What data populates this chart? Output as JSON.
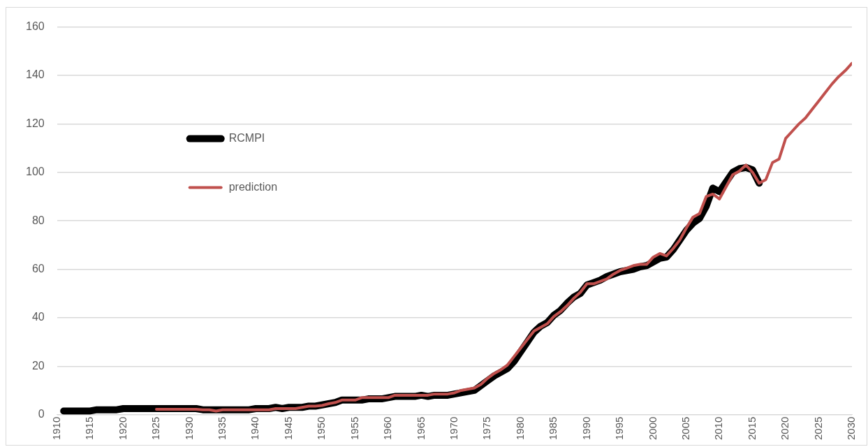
{
  "chart_data": {
    "type": "line",
    "xlim": [
      1910,
      2030
    ],
    "xticks": [
      1910,
      1915,
      1920,
      1925,
      1930,
      1935,
      1940,
      1945,
      1950,
      1955,
      1960,
      1965,
      1970,
      1975,
      1980,
      1985,
      1990,
      1995,
      2000,
      2005,
      2010,
      2015,
      2020,
      2025,
      2030
    ],
    "ylim": [
      0,
      160
    ],
    "yticks": [
      0,
      20,
      40,
      60,
      80,
      100,
      120,
      140,
      160
    ],
    "grid": "y",
    "legend": "top left",
    "marker": "none",
    "line_style": "solid",
    "series": [
      {
        "name": "RCMPI",
        "color": "#000000",
        "x": [
          1911,
          1912,
          1913,
          1914,
          1915,
          1916,
          1917,
          1918,
          1919,
          1920,
          1921,
          1922,
          1923,
          1924,
          1925,
          1926,
          1927,
          1928,
          1929,
          1930,
          1931,
          1932,
          1933,
          1934,
          1935,
          1936,
          1937,
          1938,
          1939,
          1940,
          1941,
          1942,
          1943,
          1944,
          1945,
          1946,
          1947,
          1948,
          1949,
          1950,
          1951,
          1952,
          1953,
          1954,
          1955,
          1956,
          1957,
          1958,
          1959,
          1960,
          1961,
          1962,
          1963,
          1964,
          1965,
          1966,
          1967,
          1968,
          1969,
          1970,
          1971,
          1972,
          1973,
          1974,
          1975,
          1976,
          1977,
          1978,
          1979,
          1980,
          1981,
          1982,
          1983,
          1984,
          1985,
          1986,
          1987,
          1988,
          1989,
          1990,
          1991,
          1992,
          1993,
          1994,
          1995,
          1996,
          1997,
          1998,
          1999,
          2000,
          2001,
          2002,
          2003,
          2004,
          2005,
          2006,
          2007,
          2008,
          2009,
          2010,
          2011,
          2012,
          2013,
          2014,
          2015,
          2016
        ],
        "values": [
          1.5,
          1.5,
          1.5,
          1.5,
          1.5,
          2,
          2,
          2,
          2,
          2.5,
          2.5,
          2.5,
          2.5,
          2.5,
          2.5,
          2.5,
          2.5,
          2.5,
          2.5,
          2.5,
          2.5,
          2,
          2,
          2,
          2,
          2,
          2,
          2,
          2,
          2.5,
          2.5,
          2.5,
          3,
          2.5,
          3,
          3,
          3,
          3.5,
          3.5,
          4,
          4.5,
          5,
          6,
          6,
          6,
          6,
          6.5,
          6.5,
          6.5,
          7,
          7.5,
          7.5,
          7.5,
          7.5,
          8,
          7.5,
          8,
          8,
          8,
          8.5,
          9,
          9.5,
          10,
          12,
          14,
          16,
          17.5,
          19,
          22,
          26,
          30,
          34,
          36.5,
          38,
          41,
          43,
          46,
          48.5,
          50,
          53.5,
          54.5,
          55.5,
          57,
          58,
          59,
          59.5,
          60,
          61,
          61.5,
          63,
          64.5,
          65,
          68,
          72,
          76,
          79,
          81,
          86,
          93.5,
          92,
          96,
          100,
          101.5,
          102,
          101,
          95.5
        ]
      },
      {
        "name": "prediction",
        "color": "#c0504d",
        "x": [
          1925,
          1926,
          1927,
          1928,
          1929,
          1930,
          1931,
          1932,
          1933,
          1934,
          1935,
          1936,
          1937,
          1938,
          1939,
          1940,
          1941,
          1942,
          1943,
          1944,
          1945,
          1946,
          1947,
          1948,
          1949,
          1950,
          1951,
          1952,
          1953,
          1954,
          1955,
          1956,
          1957,
          1958,
          1959,
          1960,
          1961,
          1962,
          1963,
          1964,
          1965,
          1966,
          1967,
          1968,
          1969,
          1970,
          1971,
          1972,
          1973,
          1974,
          1975,
          1976,
          1977,
          1978,
          1979,
          1980,
          1981,
          1982,
          1983,
          1984,
          1985,
          1986,
          1987,
          1988,
          1989,
          1990,
          1991,
          1992,
          1993,
          1994,
          1995,
          1996,
          1997,
          1998,
          1999,
          2000,
          2001,
          2002,
          2003,
          2004,
          2005,
          2006,
          2007,
          2008,
          2009,
          2010,
          2011,
          2012,
          2013,
          2014,
          2015,
          2016,
          2017,
          2018,
          2019,
          2020,
          2021,
          2022,
          2023,
          2024,
          2025,
          2026,
          2027,
          2028,
          2029,
          2030
        ],
        "values": [
          2.2,
          2.2,
          2.2,
          2.2,
          2.2,
          2.2,
          2.2,
          2,
          2,
          1.5,
          2,
          2,
          2,
          2,
          2,
          2,
          2,
          2,
          2.5,
          2.5,
          2.5,
          2.5,
          3,
          3.5,
          3.5,
          3.8,
          4.5,
          5,
          6,
          6,
          6,
          7,
          7,
          7,
          7,
          7,
          8,
          8,
          8,
          8,
          8,
          8,
          8.5,
          8.5,
          8.5,
          9,
          10,
          10.5,
          11,
          12.5,
          15,
          17,
          18.5,
          20.5,
          24,
          27.5,
          31,
          34.5,
          36,
          37.5,
          40.5,
          42.5,
          45,
          48,
          50.5,
          54,
          54,
          55,
          56,
          58,
          59.5,
          60.5,
          61.5,
          62,
          62,
          65,
          66.5,
          65.5,
          68.5,
          72,
          77,
          81.5,
          83,
          90,
          91,
          89,
          94,
          99,
          100.5,
          103,
          100,
          95.5,
          97,
          104,
          105.5,
          114,
          117,
          120,
          122.5,
          126,
          129.5,
          133,
          136.5,
          139.5,
          142,
          145
        ]
      }
    ]
  }
}
